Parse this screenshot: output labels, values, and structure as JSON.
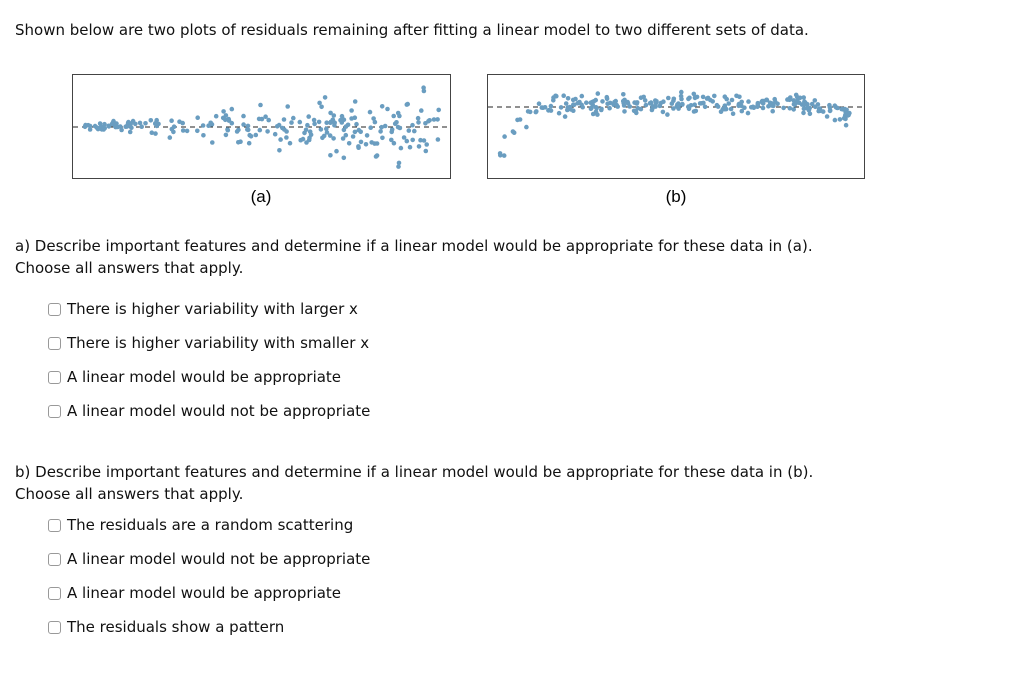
{
  "intro": "Shown below are two plots of residuals remaining after fitting a linear model to two different sets of data.",
  "figures": [
    {
      "label": "(a)"
    },
    {
      "label": "(b)"
    }
  ],
  "questions": [
    {
      "prompt": "a) Describe important features and determine if a linear model would be appropriate for these data in (a).",
      "instruction": "Choose all answers that apply.",
      "options": [
        "There is higher variability with larger x",
        "There is higher variability with smaller x",
        "A linear model would be appropriate",
        "A linear model would not be appropriate"
      ]
    },
    {
      "prompt": "b) Describe important features and determine if a linear model would be appropriate for these data in (b).",
      "instruction": "Choose all answers that apply.",
      "options": [
        "The residuals are a random scattering",
        "A linear model would not be appropriate",
        "A linear model would be appropriate",
        "The residuals show a pattern"
      ]
    }
  ]
}
